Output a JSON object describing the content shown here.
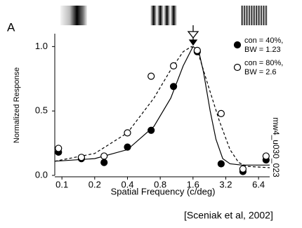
{
  "chart_data": {
    "type": "scatter",
    "panel_label": "A",
    "x_label": "Spatial Frequency (c/deg)",
    "y_label": "Normalized Response",
    "side_label": "mw4_u030_023",
    "citation": "[Sceniak et al, 2002]",
    "xscale": "log",
    "xlim": [
      0.086,
      8.1
    ],
    "xticks": [
      0.1,
      0.2,
      0.4,
      0.8,
      1.6,
      3.2,
      6.4
    ],
    "ylim": [
      0,
      1.1
    ],
    "yticks": [
      {
        "value": 0,
        "label": "0.0"
      },
      0.5,
      {
        "value": 1,
        "label": "1.0"
      }
    ],
    "series": [
      {
        "legend_lines": [
          "con = 40%,",
          "BW = 1.23"
        ],
        "color": "#000000",
        "marker": "filled",
        "dashed": false,
        "x": [
          0.093,
          0.151,
          0.244,
          0.4,
          0.66,
          1.06,
          1.75,
          2.9,
          4.6,
          7.5
        ],
        "values": [
          0.18,
          0.13,
          0.1,
          0.22,
          0.35,
          0.69,
          0.96,
          0.09,
          0.03,
          0.12
        ],
        "fit_x": [
          0.086,
          0.2,
          0.4,
          0.7,
          1.0,
          1.3,
          1.6,
          1.8,
          2.0,
          2.3,
          2.6,
          3.0,
          3.5,
          4.5,
          8.1
        ],
        "fit_values": [
          0.11,
          0.13,
          0.2,
          0.38,
          0.6,
          0.85,
          1.0,
          0.97,
          0.8,
          0.5,
          0.28,
          0.13,
          0.09,
          0.08,
          0.08
        ]
      },
      {
        "legend_lines": [
          "con = 80%,",
          "BW = 2.6"
        ],
        "color": "#000000",
        "marker": "open",
        "dashed": true,
        "x": [
          0.093,
          0.151,
          0.244,
          0.4,
          0.66,
          1.06,
          1.75,
          2.9,
          4.6,
          7.5
        ],
        "values": [
          0.21,
          0.14,
          0.15,
          0.33,
          0.77,
          0.85,
          0.97,
          0.48,
          0.05,
          0.15
        ],
        "fit_x": [
          0.086,
          0.2,
          0.4,
          0.7,
          1.0,
          1.3,
          1.55,
          1.8,
          2.2,
          2.8,
          3.5,
          4.2,
          5.0,
          8.1
        ],
        "fit_values": [
          0.11,
          0.17,
          0.33,
          0.6,
          0.82,
          0.96,
          1.0,
          0.94,
          0.7,
          0.42,
          0.2,
          0.1,
          0.07,
          0.06
        ]
      }
    ]
  }
}
